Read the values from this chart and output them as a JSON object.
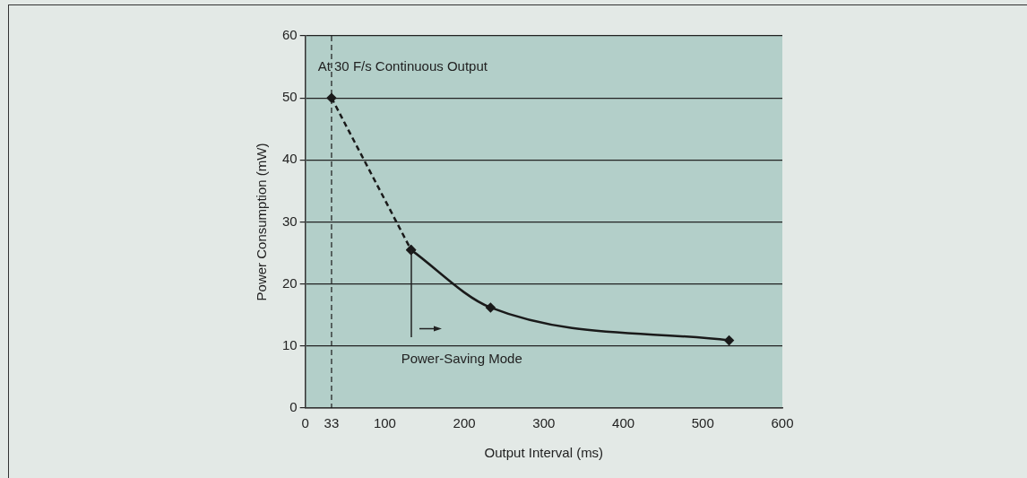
{
  "chart_data": {
    "type": "line",
    "xlabel": "Output Interval (ms)",
    "ylabel": "Power Consumption (mW)",
    "series": [
      {
        "color": "#1a1a1a",
        "line_style": "dashed",
        "x": [
          33,
          133
        ],
        "values": [
          50,
          25.5
        ]
      },
      {
        "color": "#1a1a1a",
        "line_style": "solid",
        "x": [
          133,
          233,
          533
        ],
        "values": [
          25.5,
          16.2,
          10.9
        ]
      }
    ],
    "marker": "diamond",
    "xlim": [
      0,
      600
    ],
    "xticks": [
      0,
      33,
      100,
      200,
      300,
      400,
      500,
      600
    ],
    "ylim": [
      0,
      60
    ],
    "yticks": [
      0,
      10,
      20,
      30,
      40,
      50,
      60
    ],
    "grid": "y",
    "legend": false,
    "ref_lines": [
      {
        "axis": "x",
        "value": 33,
        "line_style": "dashed",
        "color": "#1a1a1a"
      }
    ],
    "annotations": [
      "At 30 F/s Continuous Output",
      {
        "text": "Power-Saving Mode",
        "x": 133,
        "y": 25.5
      }
    ]
  }
}
